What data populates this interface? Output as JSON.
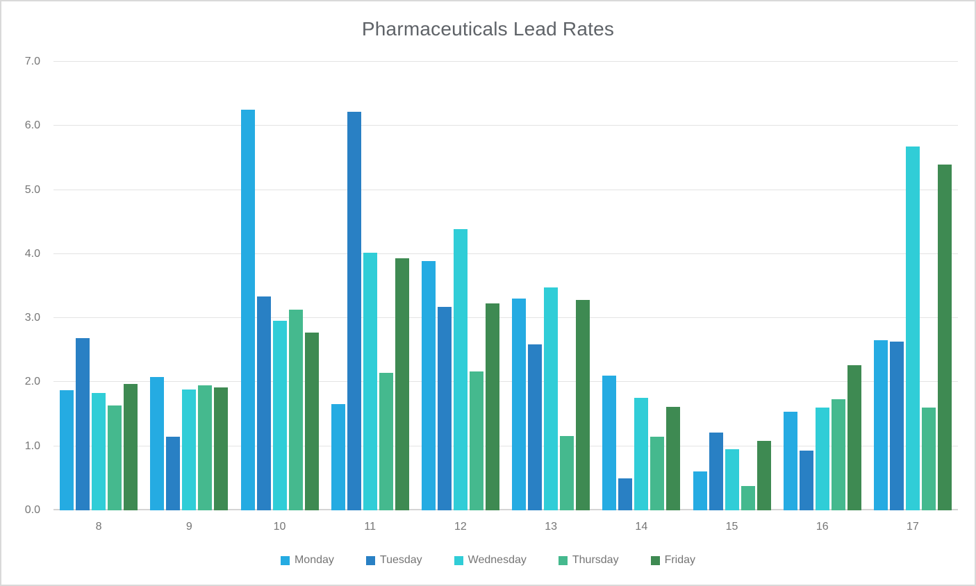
{
  "chart_data": {
    "type": "bar",
    "title": "Pharmaceuticals Lead Rates",
    "categories": [
      "8",
      "9",
      "10",
      "11",
      "12",
      "13",
      "14",
      "15",
      "16",
      "17"
    ],
    "series": [
      {
        "name": "Monday",
        "color": "#25abe2",
        "values": [
          1.87,
          2.08,
          6.25,
          1.66,
          3.89,
          3.3,
          2.1,
          0.61,
          1.54,
          2.66
        ]
      },
      {
        "name": "Tuesday",
        "color": "#2980c4",
        "values": [
          2.69,
          1.15,
          3.34,
          6.22,
          3.17,
          2.59,
          0.5,
          1.21,
          0.93,
          2.63
        ]
      },
      {
        "name": "Wednesday",
        "color": "#30cdd7",
        "values": [
          1.83,
          1.89,
          2.96,
          4.02,
          4.39,
          3.48,
          1.76,
          0.95,
          1.6,
          5.68
        ]
      },
      {
        "name": "Thursday",
        "color": "#45b98e",
        "values": [
          1.64,
          1.95,
          3.13,
          2.15,
          2.17,
          1.16,
          1.15,
          0.38,
          1.73,
          1.6
        ]
      },
      {
        "name": "Friday",
        "color": "#3e8a52",
        "values": [
          1.97,
          1.92,
          2.77,
          3.93,
          3.23,
          3.28,
          1.61,
          1.08,
          2.27,
          5.4
        ]
      }
    ],
    "xlabel": "",
    "ylabel": "",
    "ylim": [
      0,
      7
    ],
    "ytick_labels": [
      "0.0",
      "1.0",
      "2.0",
      "3.0",
      "4.0",
      "5.0",
      "6.0",
      "7.0"
    ],
    "grid": true,
    "legend_position": "bottom",
    "colors": {
      "title_text": "#5f6368",
      "axis_text": "#757575",
      "gridline": "#e3e3e3",
      "axis_line": "#d4d4d4",
      "frame_border": "#d9d9d9",
      "background": "#ffffff"
    }
  }
}
